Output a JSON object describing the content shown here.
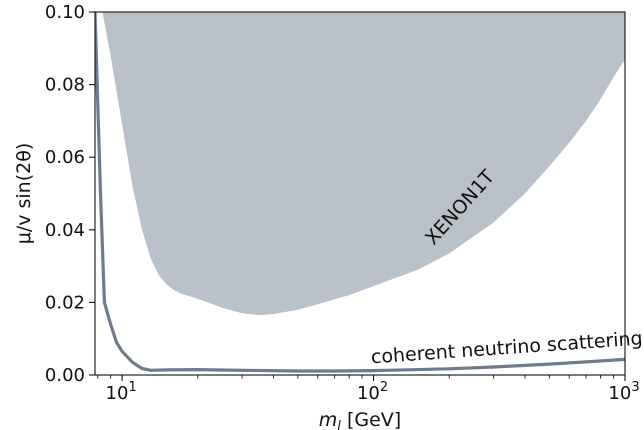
{
  "chart_data": {
    "type": "area",
    "title": "",
    "xscale": "log",
    "xlim": [
      7.8,
      1000
    ],
    "ylim": [
      0.0,
      0.1
    ],
    "grid": false,
    "xlabel": "m_l [GeV]",
    "ylabel": "μ/v sin(2θ)",
    "x_ticks": [
      {
        "value": 10,
        "label": "10",
        "exp": "1"
      },
      {
        "value": 100,
        "label": "10",
        "exp": "2"
      },
      {
        "value": 1000,
        "label": "10",
        "exp": "3"
      }
    ],
    "y_ticks": [
      {
        "value": 0.0,
        "label": "0.00"
      },
      {
        "value": 0.02,
        "label": "0.02"
      },
      {
        "value": 0.04,
        "label": "0.04"
      },
      {
        "value": 0.06,
        "label": "0.06"
      },
      {
        "value": 0.08,
        "label": "0.08"
      },
      {
        "value": 0.1,
        "label": "0.10"
      }
    ],
    "series": [
      {
        "name": "XENON1T",
        "kind": "excluded-region",
        "color": "#b9c0c8",
        "x": [
          8.35,
          9.0,
          10.0,
          11.0,
          12.0,
          13.0,
          14.0,
          15.0,
          16.0,
          17.0,
          20.0,
          25.0,
          30.0,
          35.0,
          40.0,
          50.0,
          60.0,
          80.0,
          100.0,
          150.0,
          200.0,
          300.0,
          400.0,
          500.0,
          600.0,
          700.0,
          800.0,
          900.0,
          1000.0
        ],
        "y": [
          0.1,
          0.088,
          0.069,
          0.052,
          0.04,
          0.032,
          0.0275,
          0.025,
          0.0235,
          0.0225,
          0.021,
          0.0185,
          0.017,
          0.0165,
          0.0168,
          0.018,
          0.0195,
          0.022,
          0.0245,
          0.029,
          0.0335,
          0.042,
          0.05,
          0.0575,
          0.064,
          0.07,
          0.076,
          0.082,
          0.087
        ]
      },
      {
        "name": "coherent neutrino scattering",
        "kind": "curve",
        "color": "#6e7b8b",
        "x": [
          7.8,
          8.2,
          8.5,
          9.0,
          9.5,
          10.0,
          11.0,
          12.0,
          13.0,
          15.0,
          20.0,
          30.0,
          50.0,
          70.0,
          100.0,
          200.0,
          300.0,
          500.0,
          700.0,
          1000.0
        ],
        "y": [
          0.1,
          0.05,
          0.02,
          0.014,
          0.009,
          0.0065,
          0.0035,
          0.0018,
          0.0013,
          0.0014,
          0.0015,
          0.0013,
          0.0011,
          0.0011,
          0.0012,
          0.0017,
          0.0022,
          0.003,
          0.0036,
          0.0043
        ]
      }
    ],
    "annotations": [
      {
        "text": "XENON1T",
        "x": 230,
        "y": 0.045,
        "rotation": -48
      },
      {
        "text": "coherent neutrino scattering",
        "x": 340,
        "y": 0.0058,
        "rotation": -4
      }
    ]
  }
}
